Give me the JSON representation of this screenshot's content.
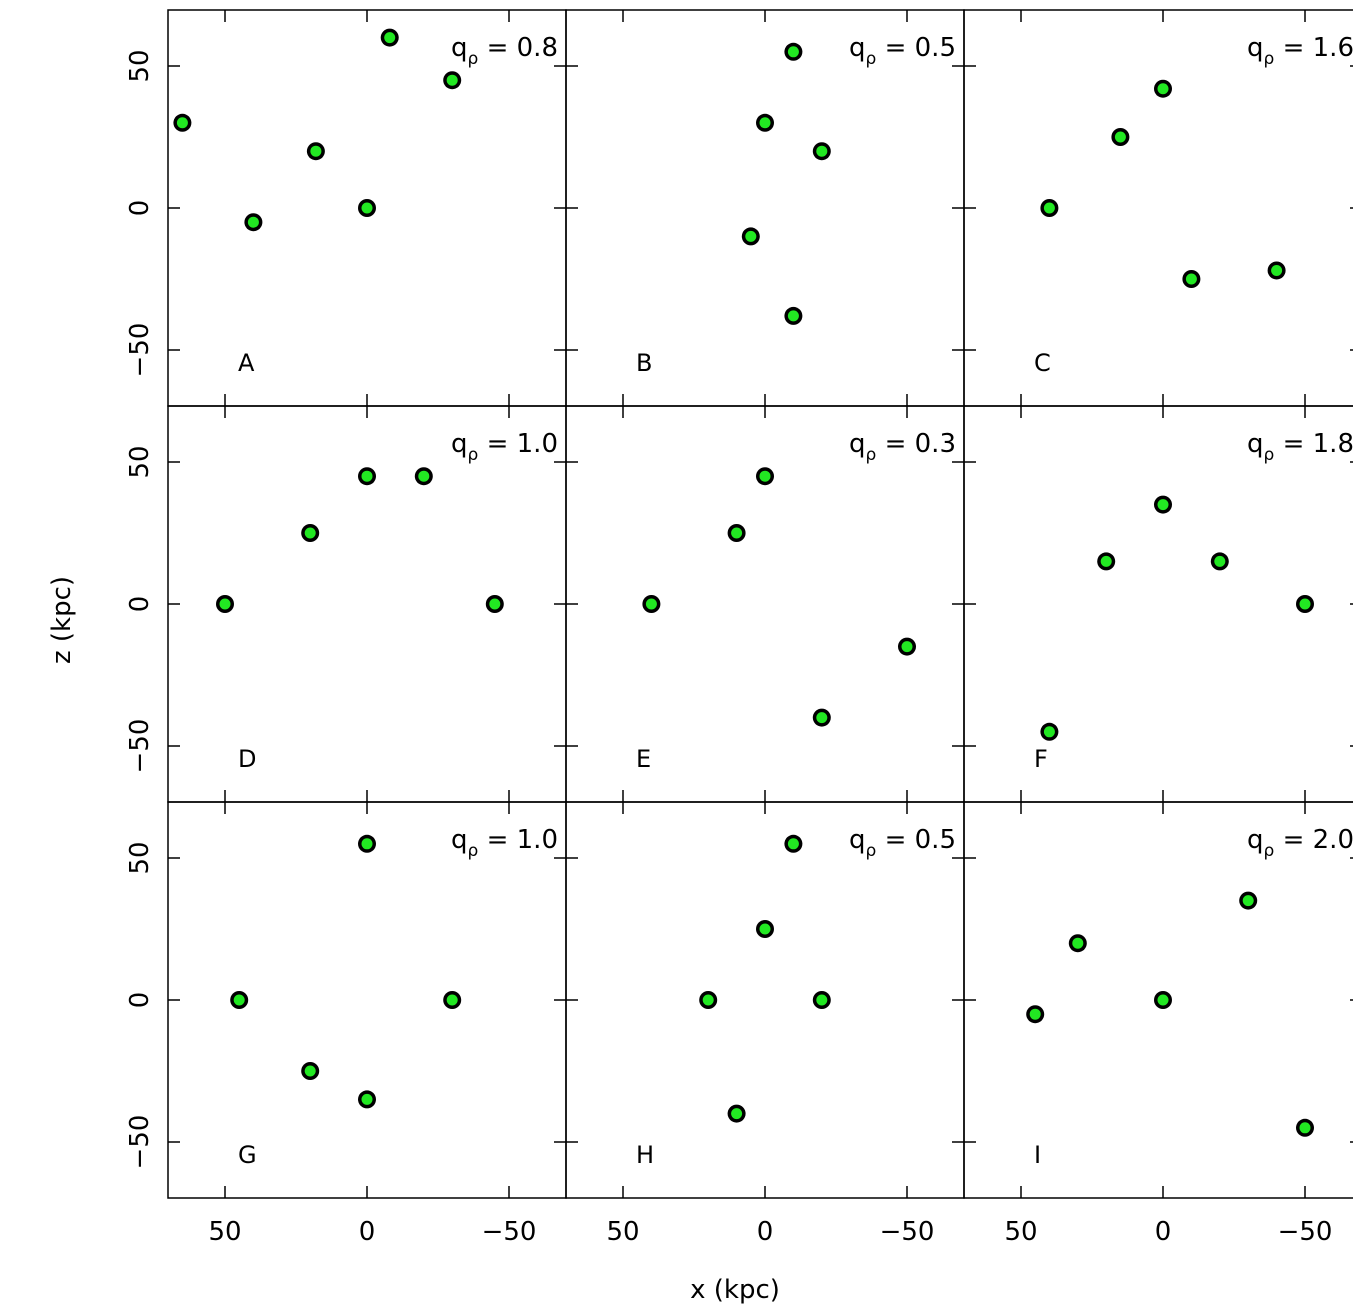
{
  "figure": {
    "xlabel": "x (kpc)",
    "ylabel": "z (kpc)"
  },
  "chart_data": {
    "type": "scatter",
    "xlabel": "x (kpc)",
    "ylabel": "z (kpc)",
    "xlim": [
      70,
      -70
    ],
    "ylim": [
      -70,
      70
    ],
    "x_reversed": true,
    "xticks": [
      "50",
      "0",
      "−50"
    ],
    "yticks": [
      "−50",
      "0",
      "50"
    ],
    "q_symbol": "q",
    "q_subscript": "ρ",
    "q_equals": "=",
    "colors": {
      "stars": "#000000",
      "orbit": "#22e822"
    },
    "panels": [
      {
        "letter": "A",
        "q": "0.8",
        "orbit_x": [
          0,
          -30,
          -8,
          18,
          40,
          65
        ],
        "orbit_z": [
          0,
          45,
          60,
          20,
          -5,
          30
        ]
      },
      {
        "letter": "B",
        "q": "0.5",
        "orbit_x": [
          -10,
          -20,
          -10,
          0,
          5
        ],
        "orbit_z": [
          -38,
          20,
          55,
          30,
          -10
        ]
      },
      {
        "letter": "C",
        "q": "1.6",
        "orbit_x": [
          -40,
          -10,
          0,
          15,
          40
        ],
        "orbit_z": [
          -22,
          -25,
          42,
          25,
          0
        ]
      },
      {
        "letter": "D",
        "q": "1.0",
        "orbit_x": [
          -45,
          -20,
          0,
          20,
          50
        ],
        "orbit_z": [
          0,
          45,
          45,
          25,
          0
        ]
      },
      {
        "letter": "E",
        "q": "0.3",
        "orbit_x": [
          -50,
          -20,
          0,
          10,
          40
        ],
        "orbit_z": [
          -15,
          -40,
          45,
          25,
          0
        ]
      },
      {
        "letter": "F",
        "q": "1.8",
        "orbit_x": [
          -50,
          -20,
          0,
          20,
          40
        ],
        "orbit_z": [
          0,
          15,
          35,
          15,
          -45
        ]
      },
      {
        "letter": "G",
        "q": "1.0",
        "orbit_x": [
          -30,
          0,
          20,
          45,
          0
        ],
        "orbit_z": [
          0,
          -35,
          -25,
          0,
          55
        ]
      },
      {
        "letter": "H",
        "q": "0.5",
        "orbit_x": [
          -20,
          -10,
          0,
          10,
          20
        ],
        "orbit_z": [
          0,
          55,
          25,
          -40,
          0
        ]
      },
      {
        "letter": "I",
        "q": "2.0",
        "orbit_x": [
          -50,
          -30,
          0,
          30,
          45
        ],
        "orbit_z": [
          -45,
          35,
          0,
          20,
          -5
        ]
      }
    ]
  }
}
